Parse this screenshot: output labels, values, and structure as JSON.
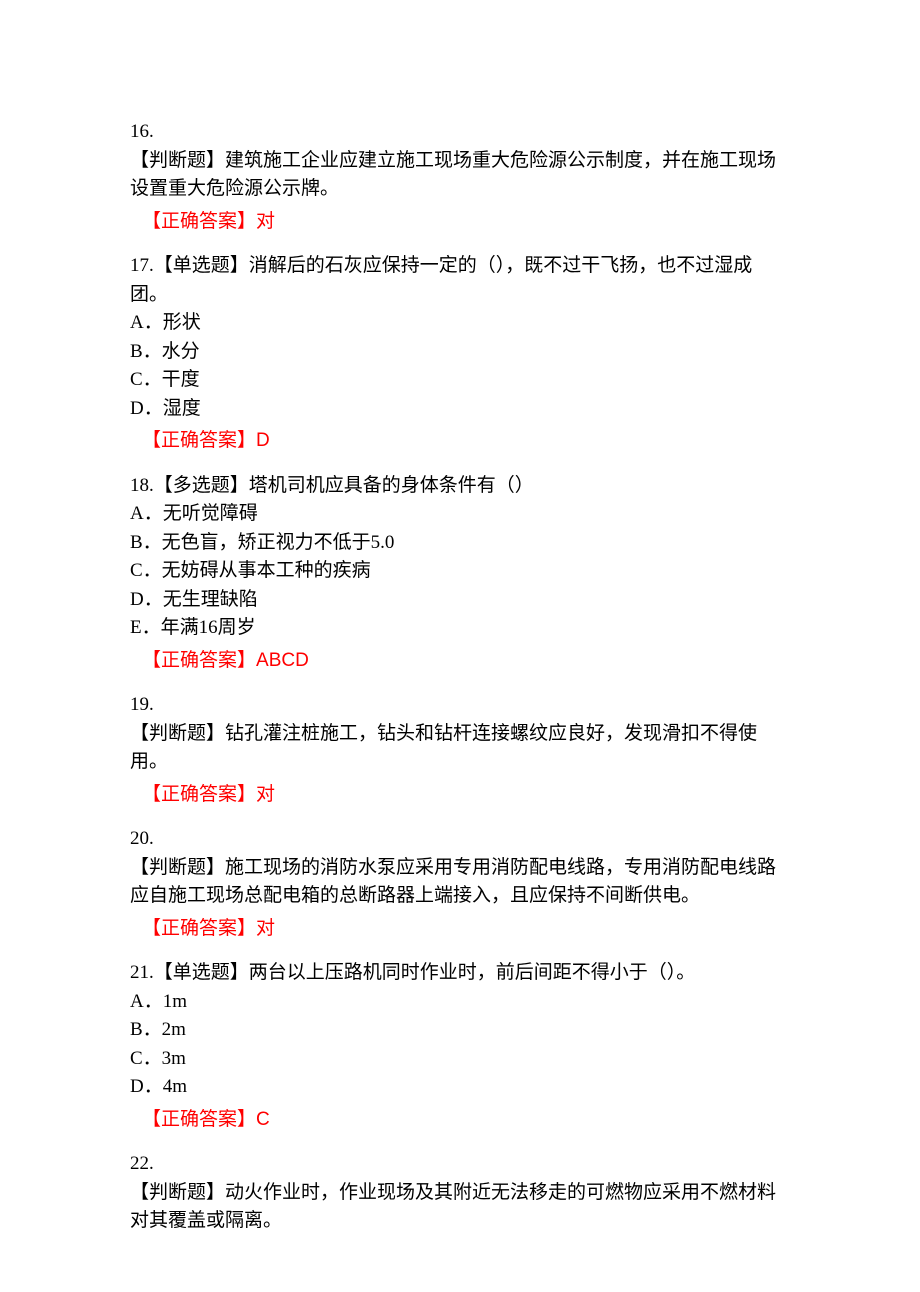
{
  "text_color": "#000000",
  "answer_color": "#ff0000",
  "background_color": "#ffffff",
  "font_size": 19,
  "questions": [
    {
      "number": "16.",
      "type": "【判断题】",
      "text": "建筑施工企业应建立施工现场重大危险源公示制度，并在施工现场设置重大危险源公示牌。",
      "number_alone": true,
      "options": [],
      "answer_label": "【正确答案】",
      "answer_value": "对"
    },
    {
      "number": "17.",
      "type": "【单选题】",
      "text": "消解后的石灰应保持一定的（），既不过干飞扬，也不过湿成团。",
      "number_alone": false,
      "options": [
        "A．形状",
        "B．水分",
        "C．干度",
        "D．湿度"
      ],
      "answer_label": "【正确答案】",
      "answer_value": "D"
    },
    {
      "number": "18.",
      "type": "【多选题】",
      "text": "塔机司机应具备的身体条件有（）",
      "number_alone": false,
      "options": [
        "A．无听觉障碍",
        "B．无色盲，矫正视力不低于5.0",
        "C．无妨碍从事本工种的疾病",
        "D．无生理缺陷",
        "E．年满16周岁"
      ],
      "answer_label": "【正确答案】",
      "answer_value": "ABCD"
    },
    {
      "number": "19.",
      "type": "【判断题】",
      "text": "钻孔灌注桩施工，钻头和钻杆连接螺纹应良好，发现滑扣不得使用。",
      "number_alone": true,
      "options": [],
      "answer_label": "【正确答案】",
      "answer_value": "对"
    },
    {
      "number": "20.",
      "type": "【判断题】",
      "text": "施工现场的消防水泵应采用专用消防配电线路，专用消防配电线路应自施工现场总配电箱的总断路器上端接入，且应保持不间断供电。",
      "number_alone": true,
      "options": [],
      "answer_label": "【正确答案】",
      "answer_value": "对"
    },
    {
      "number": "21.",
      "type": "【单选题】",
      "text": "两台以上压路机同时作业时，前后间距不得小于（）。",
      "number_alone": false,
      "options": [
        "A．1m",
        "B．2m",
        "C．3m",
        "D．4m"
      ],
      "answer_label": "【正确答案】",
      "answer_value": "C"
    },
    {
      "number": "22.",
      "type": "【判断题】",
      "text": "动火作业时，作业现场及其附近无法移走的可燃物应采用不燃材料对其覆盖或隔离。",
      "number_alone": true,
      "options": [],
      "answer_label": "",
      "answer_value": ""
    }
  ]
}
